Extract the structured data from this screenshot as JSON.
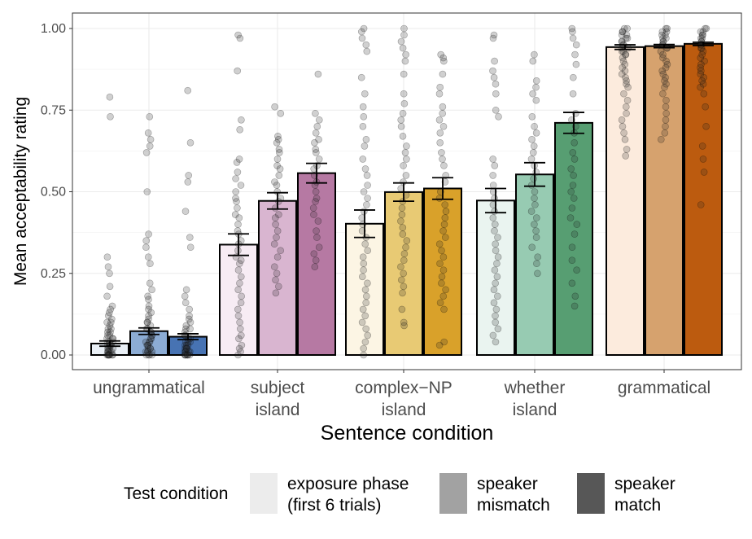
{
  "chart_data": {
    "type": "bar",
    "title": "",
    "xlabel": "Sentence condition",
    "ylabel": "Mean acceptability rating",
    "ylim": [
      0,
      1
    ],
    "yticks": [
      "0.00",
      "0.25",
      "0.50",
      "0.75",
      "1.00"
    ],
    "ytick_values": [
      0,
      0.25,
      0.5,
      0.75,
      1.0
    ],
    "grid": true,
    "categories": [
      {
        "lines": [
          "ungrammatical"
        ]
      },
      {
        "lines": [
          "subject",
          "island"
        ]
      },
      {
        "lines": [
          "complex−NP",
          "island"
        ]
      },
      {
        "lines": [
          "whether",
          "island"
        ]
      },
      {
        "lines": [
          "grammatical"
        ]
      }
    ],
    "series": [
      {
        "name": "exposure phase (first 6 trials)",
        "values": [
          0.035,
          0.338,
          0.402,
          0.473,
          0.943
        ],
        "error": [
          0.008,
          0.033,
          0.042,
          0.037,
          0.007
        ],
        "colors": [
          "#eaf0f6",
          "#f7ecf4",
          "#fcf5e4",
          "#eaf4f0",
          "#fcebdd"
        ]
      },
      {
        "name": "speaker mismatch",
        "values": [
          0.073,
          0.472,
          0.499,
          0.553,
          0.946
        ],
        "error": [
          0.01,
          0.025,
          0.028,
          0.036,
          0.005
        ],
        "colors": [
          "#8cacd4",
          "#d9b5d0",
          "#e8ca74",
          "#97cbb2",
          "#d6a26e"
        ]
      },
      {
        "name": "speaker match",
        "values": [
          0.056,
          0.557,
          0.51,
          0.711,
          0.953
        ],
        "error": [
          0.009,
          0.03,
          0.033,
          0.032,
          0.005
        ],
        "colors": [
          "#4773b3",
          "#b679a3",
          "#d9a12a",
          "#579e72",
          "#bc5b0f"
        ]
      }
    ],
    "legend": {
      "title": "Test condition",
      "placement": "bottom",
      "entries": [
        {
          "lines": [
            "exposure phase",
            "(first 6 trials)"
          ],
          "color": "#ececec"
        },
        {
          "lines": [
            "speaker",
            "mismatch"
          ],
          "color": "#a2a2a2"
        },
        {
          "lines": [
            "speaker",
            "match"
          ],
          "color": "#575757"
        }
      ]
    },
    "points": [
      [
        [
          0.79,
          0.73,
          0.3,
          0.27,
          0.25,
          0.21,
          0.18,
          0.15,
          0.14,
          0.13,
          0.12,
          0.11,
          0.1,
          0.1,
          0.09,
          0.08,
          0.08,
          0.07,
          0.07,
          0.06,
          0.06,
          0.05,
          0.05,
          0.05,
          0.04,
          0.04,
          0.04,
          0.03,
          0.03,
          0.03,
          0.03,
          0.02,
          0.02,
          0.02,
          0.02,
          0.01,
          0.01,
          0.01,
          0.01,
          0.01,
          0,
          0,
          0,
          0,
          0,
          0,
          0,
          0
        ],
        [
          0.73,
          0.68,
          0.66,
          0.64,
          0.62,
          0.5,
          0.37,
          0.35,
          0.33,
          0.3,
          0.28,
          0.22,
          0.2,
          0.18,
          0.17,
          0.15,
          0.14,
          0.13,
          0.12,
          0.11,
          0.1,
          0.1,
          0.09,
          0.08,
          0.08,
          0.07,
          0.07,
          0.06,
          0.06,
          0.05,
          0.05,
          0.04,
          0.04,
          0.04,
          0.03,
          0.03,
          0.03,
          0.02,
          0.02,
          0.02,
          0.01,
          0.01,
          0.01,
          0.01,
          0,
          0,
          0,
          0
        ],
        [
          0.81,
          0.65,
          0.55,
          0.53,
          0.44,
          0.36,
          0.33,
          0.2,
          0.18,
          0.16,
          0.14,
          0.12,
          0.11,
          0.1,
          0.09,
          0.08,
          0.08,
          0.07,
          0.06,
          0.06,
          0.05,
          0.05,
          0.04,
          0.04,
          0.04,
          0.03,
          0.03,
          0.03,
          0.02,
          0.02,
          0.02,
          0.02,
          0.01,
          0.01,
          0.01,
          0.01,
          0.01,
          0,
          0,
          0,
          0,
          0,
          0,
          0
        ]
      ],
      [
        [
          0.98,
          0.97,
          0.87,
          0.72,
          0.69,
          0.6,
          0.59,
          0.56,
          0.54,
          0.52,
          0.5,
          0.48,
          0.47,
          0.45,
          0.43,
          0.42,
          0.4,
          0.38,
          0.37,
          0.35,
          0.34,
          0.32,
          0.3,
          0.29,
          0.28,
          0.26,
          0.24,
          0.22,
          0.2,
          0.18,
          0.16,
          0.14,
          0.12,
          0.1,
          0.08,
          0.06,
          0.05,
          0.03,
          0.02,
          0.01,
          0
        ],
        [
          0.76,
          0.74,
          0.67,
          0.66,
          0.65,
          0.63,
          0.62,
          0.6,
          0.58,
          0.57,
          0.55,
          0.53,
          0.52,
          0.5,
          0.48,
          0.47,
          0.45,
          0.43,
          0.42,
          0.4,
          0.38,
          0.36,
          0.34,
          0.32,
          0.3,
          0.27,
          0.25,
          0.23,
          0.21,
          0.19
        ],
        [
          0.86,
          0.74,
          0.72,
          0.7,
          0.68,
          0.66,
          0.65,
          0.63,
          0.62,
          0.6,
          0.58,
          0.57,
          0.55,
          0.53,
          0.52,
          0.5,
          0.48,
          0.47,
          0.45,
          0.43,
          0.41,
          0.38,
          0.36,
          0.33,
          0.31,
          0.29,
          0.27
        ]
      ],
      [
        [
          1.0,
          0.99,
          0.97,
          0.95,
          0.93,
          0.85,
          0.8,
          0.76,
          0.73,
          0.7,
          0.66,
          0.64,
          0.6,
          0.57,
          0.55,
          0.52,
          0.5,
          0.48,
          0.46,
          0.44,
          0.42,
          0.4,
          0.38,
          0.36,
          0.34,
          0.32,
          0.3,
          0.28,
          0.26,
          0.24,
          0.22,
          0.2,
          0.18,
          0.16,
          0.14,
          0.12,
          0.1,
          0.08,
          0.06,
          0.04,
          0.02,
          0
        ],
        [
          1.0,
          0.98,
          0.96,
          0.94,
          0.92,
          0.9,
          0.86,
          0.8,
          0.77,
          0.74,
          0.72,
          0.7,
          0.67,
          0.64,
          0.62,
          0.6,
          0.58,
          0.55,
          0.53,
          0.51,
          0.49,
          0.47,
          0.45,
          0.43,
          0.41,
          0.39,
          0.37,
          0.35,
          0.33,
          0.31,
          0.29,
          0.27,
          0.25,
          0.23,
          0.21,
          0.19,
          0.14,
          0.1,
          0.09
        ],
        [
          0.92,
          0.91,
          0.9,
          0.86,
          0.82,
          0.8,
          0.76,
          0.74,
          0.72,
          0.7,
          0.68,
          0.65,
          0.62,
          0.6,
          0.58,
          0.55,
          0.53,
          0.5,
          0.48,
          0.46,
          0.44,
          0.42,
          0.4,
          0.38,
          0.36,
          0.34,
          0.32,
          0.3,
          0.28,
          0.26,
          0.24,
          0.22,
          0.2,
          0.18,
          0.16,
          0.14,
          0.04,
          0.03
        ]
      ],
      [
        [
          0.98,
          0.97,
          0.9,
          0.87,
          0.85,
          0.83,
          0.8,
          0.75,
          0.73,
          0.6,
          0.58,
          0.55,
          0.52,
          0.5,
          0.48,
          0.46,
          0.44,
          0.42,
          0.4,
          0.38,
          0.36,
          0.34,
          0.32,
          0.3,
          0.28,
          0.26,
          0.24,
          0.22,
          0.2,
          0.18,
          0.16,
          0.14,
          0.12,
          0.1,
          0.08,
          0.06,
          0.04
        ],
        [
          0.92,
          0.9,
          0.84,
          0.82,
          0.8,
          0.78,
          0.73,
          0.7,
          0.68,
          0.66,
          0.64,
          0.62,
          0.6,
          0.58,
          0.56,
          0.54,
          0.52,
          0.5,
          0.48,
          0.46,
          0.44,
          0.42,
          0.4,
          0.38,
          0.36,
          0.33,
          0.3,
          0.28,
          0.25
        ],
        [
          1.0,
          0.99,
          0.97,
          0.95,
          0.92,
          0.89,
          0.85,
          0.8,
          0.74,
          0.72,
          0.7,
          0.68,
          0.65,
          0.62,
          0.6,
          0.57,
          0.55,
          0.52,
          0.5,
          0.48,
          0.45,
          0.42,
          0.4,
          0.37,
          0.33,
          0.29,
          0.26,
          0.22,
          0.18,
          0.15
        ]
      ],
      [
        [
          1.0,
          1.0,
          0.99,
          0.99,
          0.98,
          0.98,
          0.97,
          0.97,
          0.96,
          0.96,
          0.95,
          0.95,
          0.94,
          0.94,
          0.93,
          0.93,
          0.92,
          0.92,
          0.91,
          0.9,
          0.89,
          0.88,
          0.87,
          0.86,
          0.85,
          0.84,
          0.83,
          0.82,
          0.8,
          0.78,
          0.76,
          0.74,
          0.72,
          0.7,
          0.68,
          0.66,
          0.63,
          0.61
        ],
        [
          1.0,
          1.0,
          0.99,
          0.99,
          0.98,
          0.98,
          0.97,
          0.97,
          0.96,
          0.96,
          0.95,
          0.95,
          0.94,
          0.94,
          0.93,
          0.92,
          0.91,
          0.9,
          0.89,
          0.88,
          0.87,
          0.86,
          0.85,
          0.84,
          0.83,
          0.82,
          0.8,
          0.78,
          0.76,
          0.74,
          0.72,
          0.7,
          0.68,
          0.66
        ],
        [
          1.0,
          1.0,
          0.99,
          0.99,
          0.98,
          0.98,
          0.97,
          0.97,
          0.96,
          0.96,
          0.95,
          0.95,
          0.94,
          0.94,
          0.93,
          0.92,
          0.91,
          0.9,
          0.89,
          0.88,
          0.87,
          0.86,
          0.85,
          0.84,
          0.83,
          0.82,
          0.8,
          0.76,
          0.7,
          0.64,
          0.6,
          0.56,
          0.46
        ]
      ]
    ]
  }
}
